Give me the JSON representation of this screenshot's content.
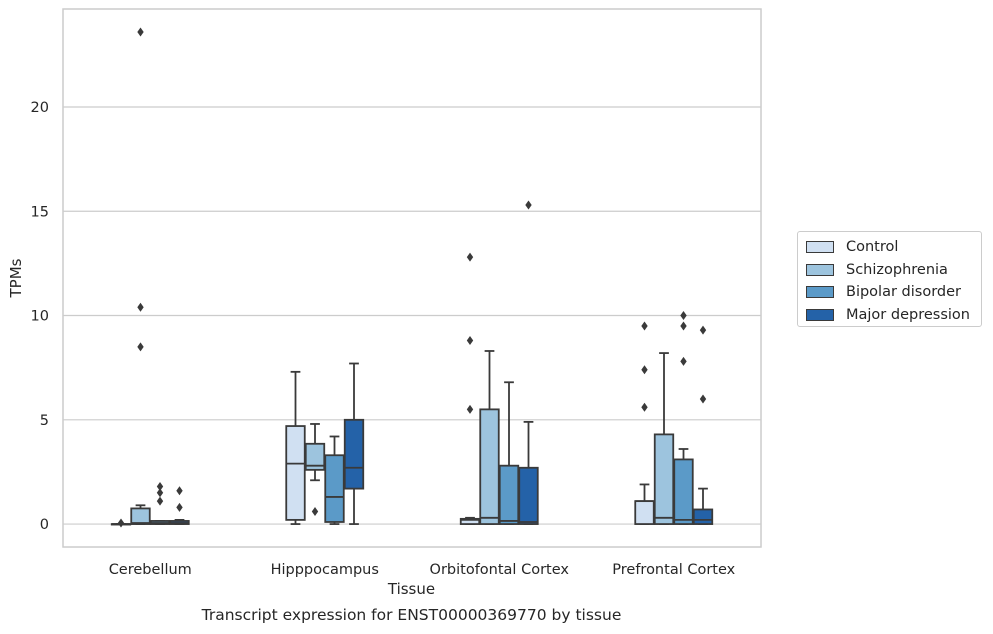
{
  "chart_data": {
    "type": "box",
    "xlabel": "Tissue",
    "ylabel": "TPMs",
    "caption": "Transcript expression for ENST00000369770 by tissue",
    "categories": [
      "Cerebellum",
      "Hipppocampus",
      "Orbitofontal Cortex",
      "Prefrontal Cortex"
    ],
    "y_ticks": [
      0,
      5,
      10,
      15,
      20
    ],
    "ylim": [
      -1.1,
      24.7
    ],
    "grid": "horizontal",
    "legend_position": "right",
    "series": [
      {
        "name": "Control",
        "color": "#d0e0f2",
        "boxes": [
          {
            "q1": 0,
            "median": 0,
            "q3": 0,
            "whisker_low": 0,
            "whisker_high": 0,
            "outliers": [
              0.05
            ]
          },
          {
            "q1": 0.2,
            "median": 2.9,
            "q3": 4.7,
            "whisker_low": 0,
            "whisker_high": 7.3,
            "outliers": []
          },
          {
            "q1": 0,
            "median": 0.2,
            "q3": 0.25,
            "whisker_low": 0,
            "whisker_high": 0.3,
            "outliers": [
              5.5,
              8.8,
              12.8
            ]
          },
          {
            "q1": 0,
            "median": 1.1,
            "q3": 1.1,
            "whisker_low": 0,
            "whisker_high": 1.9,
            "outliers": [
              5.6,
              7.4,
              9.5
            ]
          }
        ]
      },
      {
        "name": "Schizophrenia",
        "color": "#9dc4de",
        "boxes": [
          {
            "q1": 0,
            "median": 0.05,
            "q3": 0.75,
            "whisker_low": 0,
            "whisker_high": 0.9,
            "outliers": [
              8.5,
              10.4,
              23.6
            ]
          },
          {
            "q1": 2.6,
            "median": 2.8,
            "q3": 3.85,
            "whisker_low": 2.1,
            "whisker_high": 4.8,
            "outliers": [
              0.6
            ]
          },
          {
            "q1": 0,
            "median": 0.3,
            "q3": 5.5,
            "whisker_low": 0,
            "whisker_high": 8.3,
            "outliers": []
          },
          {
            "q1": 0,
            "median": 0.3,
            "q3": 4.3,
            "whisker_low": 0,
            "whisker_high": 8.2,
            "outliers": []
          }
        ]
      },
      {
        "name": "Bipolar disorder",
        "color": "#5b9ac8",
        "boxes": [
          {
            "q1": 0,
            "median": 0.05,
            "q3": 0.15,
            "whisker_low": 0,
            "whisker_high": 0.15,
            "outliers": [
              1.1,
              1.5,
              1.8
            ]
          },
          {
            "q1": 0.1,
            "median": 1.3,
            "q3": 3.3,
            "whisker_low": 0,
            "whisker_high": 4.2,
            "outliers": []
          },
          {
            "q1": 0,
            "median": 0.15,
            "q3": 2.8,
            "whisker_low": 0,
            "whisker_high": 6.8,
            "outliers": []
          },
          {
            "q1": 0,
            "median": 0.2,
            "q3": 3.1,
            "whisker_low": 0,
            "whisker_high": 3.6,
            "outliers": [
              7.8,
              9.5,
              10.0
            ]
          }
        ]
      },
      {
        "name": "Major depression",
        "color": "#2462a8",
        "boxes": [
          {
            "q1": 0,
            "median": 0.05,
            "q3": 0.15,
            "whisker_low": 0,
            "whisker_high": 0.2,
            "outliers": [
              0.8,
              1.6
            ]
          },
          {
            "q1": 1.7,
            "median": 2.7,
            "q3": 5.0,
            "whisker_low": 0,
            "whisker_high": 7.7,
            "outliers": []
          },
          {
            "q1": 0,
            "median": 0.1,
            "q3": 2.7,
            "whisker_low": 0,
            "whisker_high": 4.9,
            "outliers": [
              15.3
            ]
          },
          {
            "q1": 0,
            "median": 0.2,
            "q3": 0.7,
            "whisker_low": 0,
            "whisker_high": 1.7,
            "outliers": [
              6.0,
              9.3
            ]
          }
        ]
      }
    ]
  }
}
